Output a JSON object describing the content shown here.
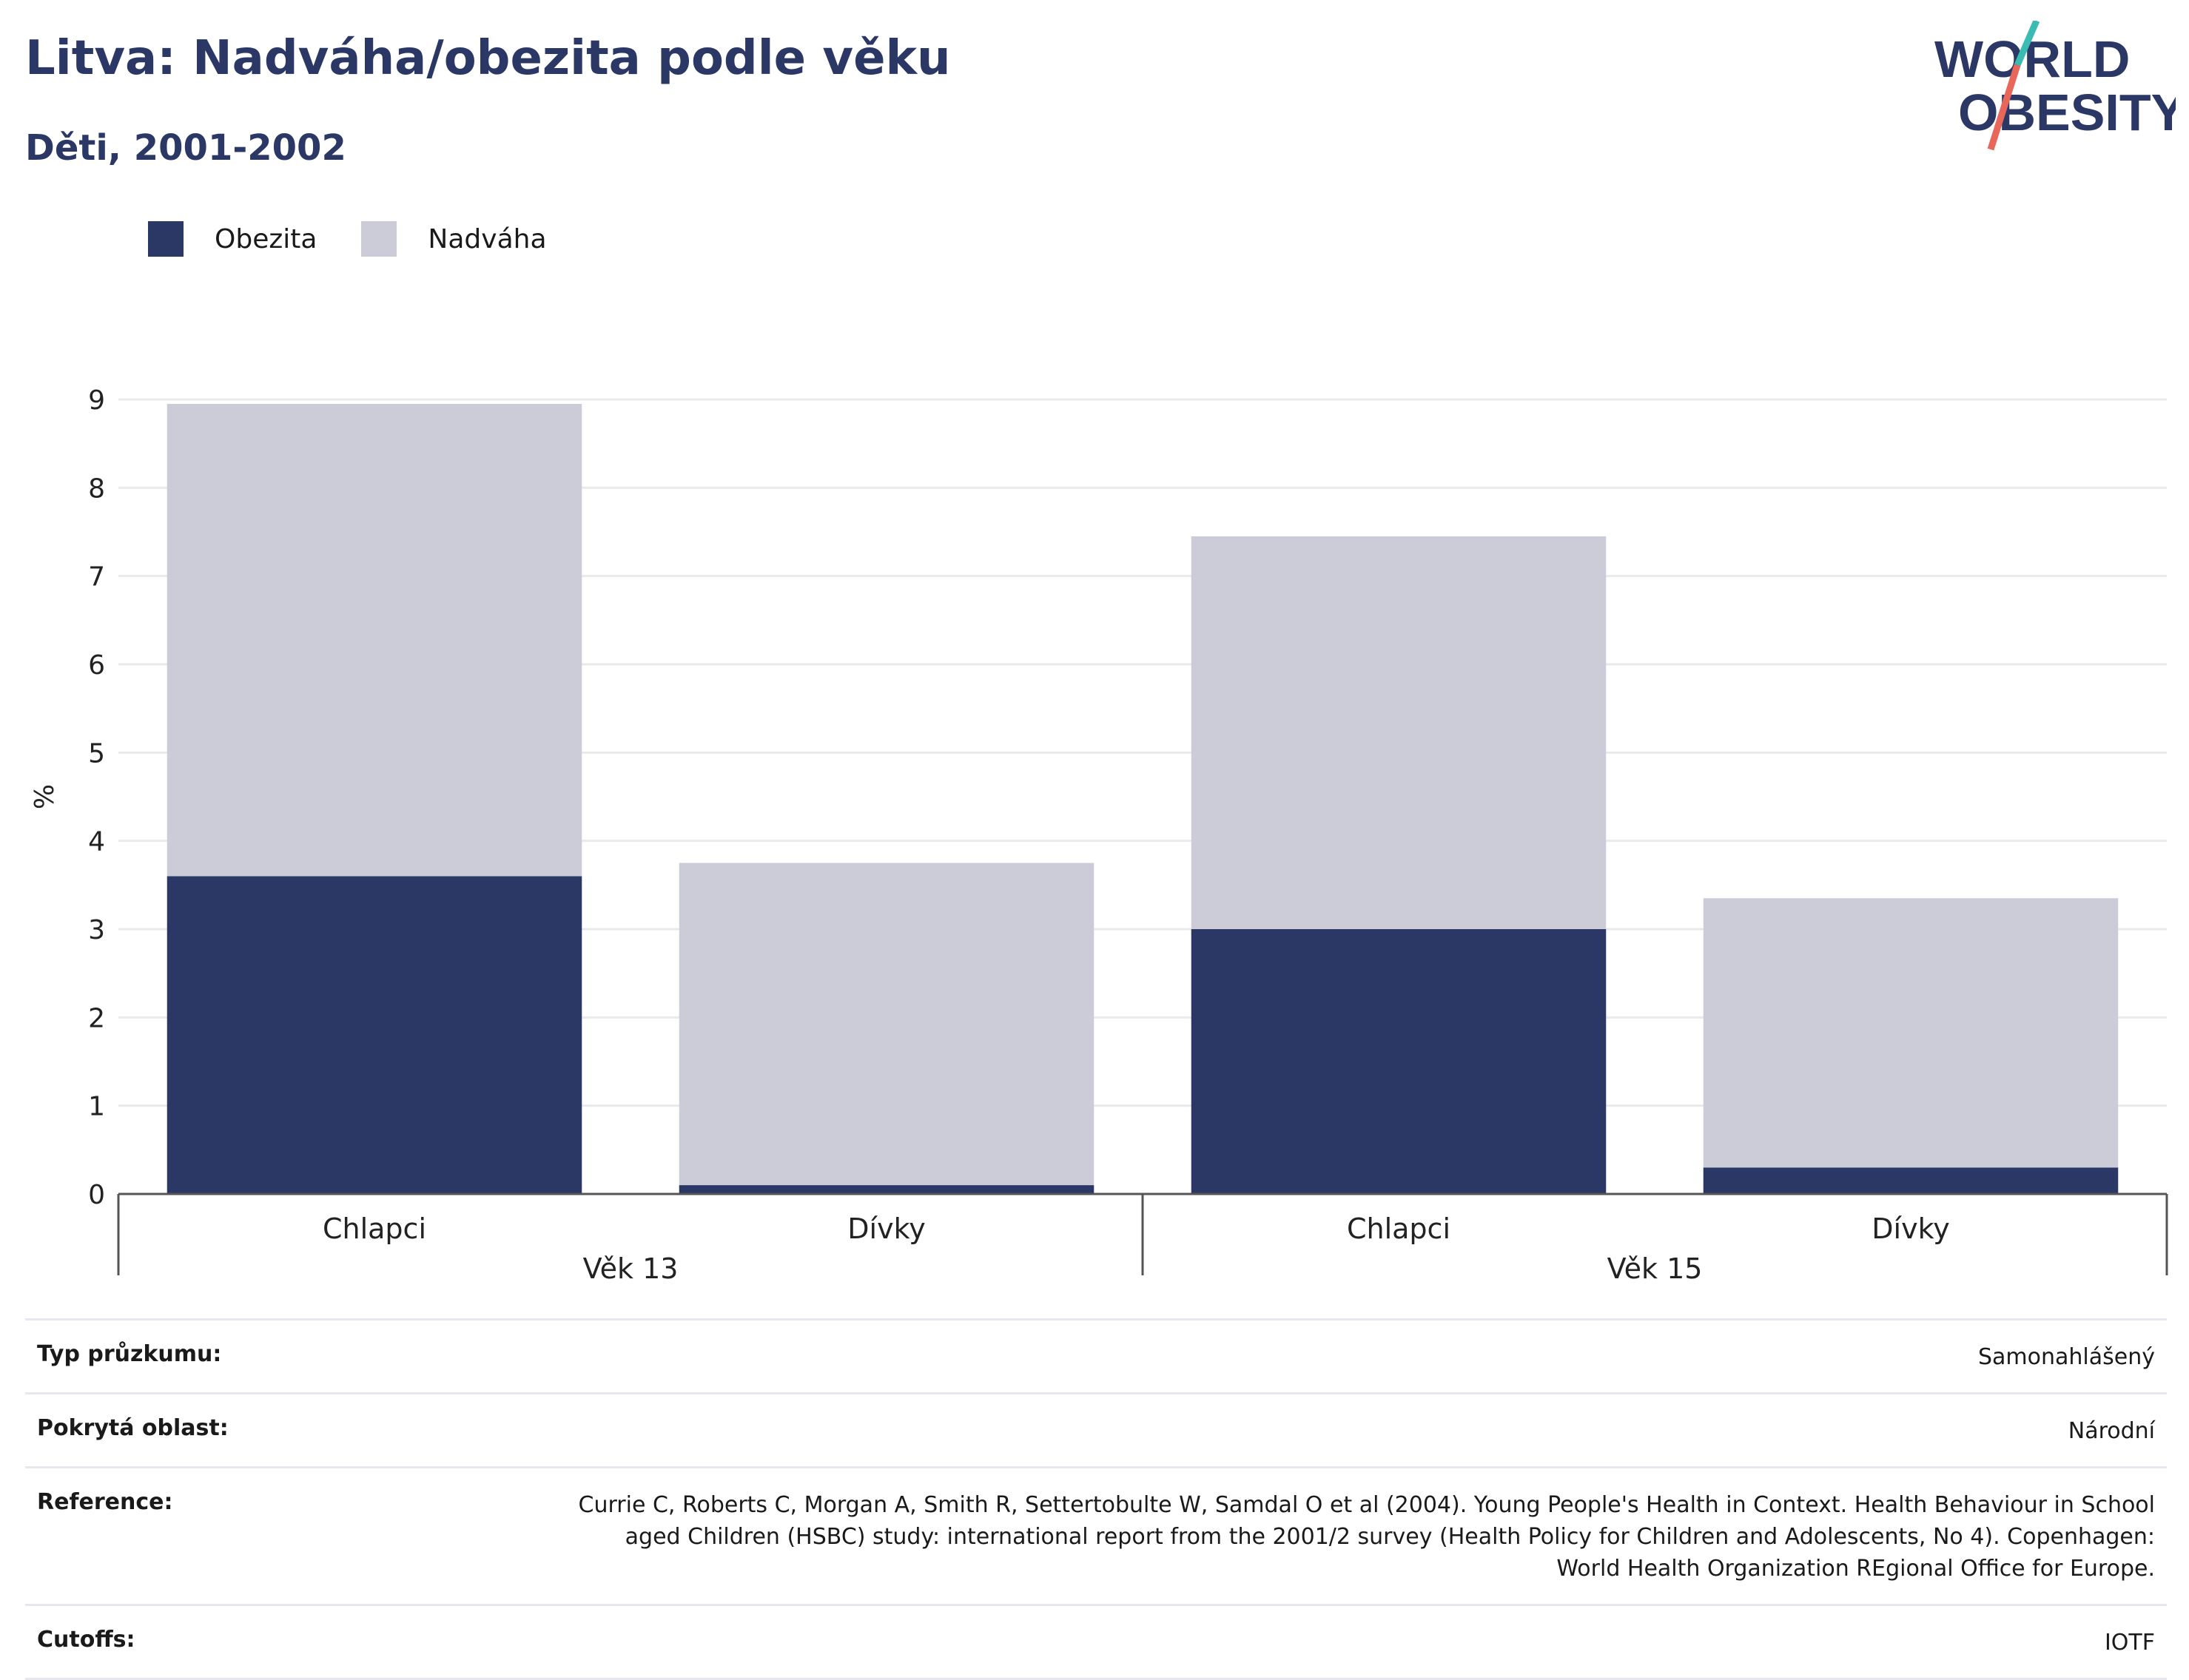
{
  "header": {
    "title": "Litva: Nadváha/obezita podle věku",
    "subtitle": "Děti, 2001-2002"
  },
  "logo": {
    "line1": "WORLD",
    "line2": "OBESITY",
    "accent_teal": "#3bbcb2",
    "accent_coral": "#e8665a"
  },
  "colors": {
    "obesity": "#2b3866",
    "overweight": "#cbccd8",
    "grid": "#e9e9ee",
    "axis": "#555555"
  },
  "chart_data": {
    "type": "bar",
    "stacked": true,
    "ylabel": "%",
    "ylim": [
      0,
      9
    ],
    "yticks": [
      0,
      1,
      2,
      3,
      4,
      5,
      6,
      7,
      8,
      9
    ],
    "grid": true,
    "legend_position": "top-left",
    "groups": [
      "Věk 13",
      "Věk 15"
    ],
    "categories": [
      "Chlapci",
      "Dívky",
      "Chlapci",
      "Dívky"
    ],
    "category_group": [
      0,
      0,
      1,
      1
    ],
    "series": [
      {
        "name": "Obezita",
        "values": [
          3.6,
          0.1,
          3.0,
          0.3
        ]
      },
      {
        "name": "Nadváha",
        "values": [
          5.35,
          3.65,
          4.45,
          3.05
        ]
      }
    ]
  },
  "info": [
    {
      "key": "Typ průzkumu:",
      "value": "Samonahlášený"
    },
    {
      "key": "Pokrytá oblast:",
      "value": "Národní"
    },
    {
      "key": "Reference:",
      "value": "Currie C, Roberts C, Morgan A, Smith R, Settertobulte W, Samdal O et al (2004). Young People's Health in Context. Health Behaviour in School aged Children (HSBC) study: international report from the 2001/2 survey (Health Policy for Children and Adolescents, No 4). Copenhagen: World Health Organization REgional Office for Europe."
    },
    {
      "key": "Cutoffs:",
      "value": "IOTF"
    }
  ]
}
